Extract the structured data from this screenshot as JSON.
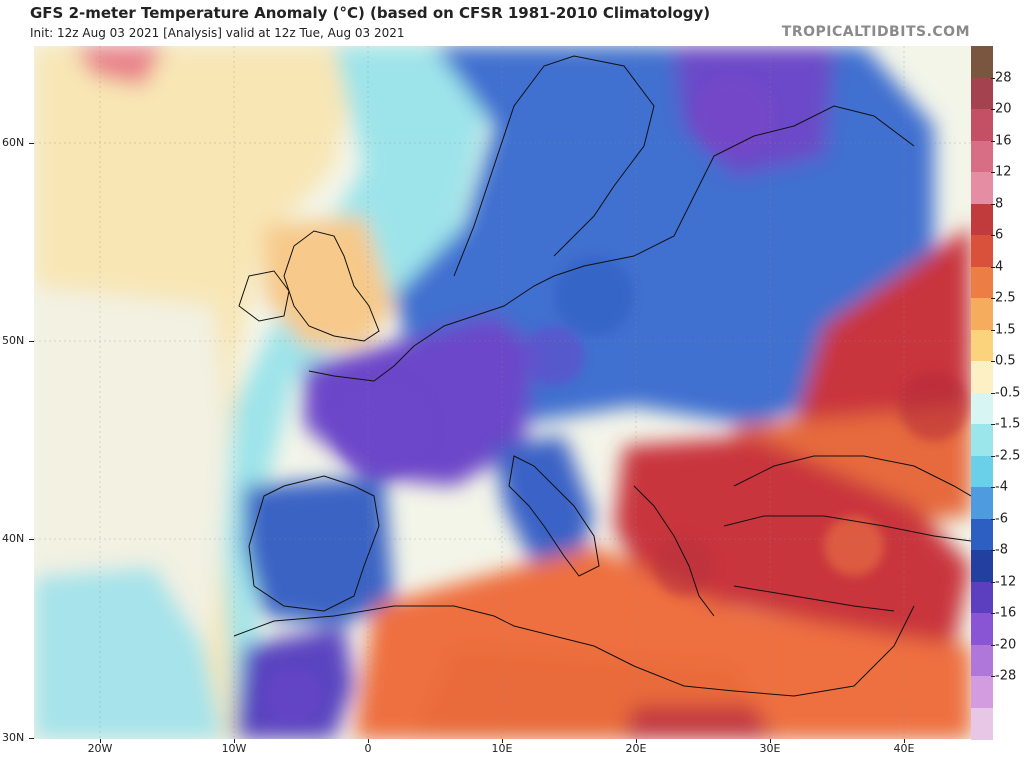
{
  "header": {
    "title": "GFS 2-meter Temperature Anomaly (°C) (based on CFSR 1981-2010 Climatology)",
    "subtitle": "Init: 12z Aug 03 2021   [Analysis]   valid at 12z Tue, Aug 03 2021",
    "brand": "TROPICALTIDBITS.COM"
  },
  "axes": {
    "lat_labels": [
      "60N",
      "50N",
      "40N",
      "30N"
    ],
    "lon_labels": [
      "20W",
      "10W",
      "0",
      "10E",
      "20E",
      "30E",
      "40E"
    ]
  },
  "colorbar": {
    "labels": [
      "28",
      "20",
      "16",
      "12",
      "8",
      "6",
      "4",
      "2.5",
      "1.5",
      "0.5",
      "-0.5",
      "-1.5",
      "-2.5",
      "-4",
      "-6",
      "-8",
      "-12",
      "-16",
      "-20",
      "-28"
    ],
    "colors": [
      "#7a5640",
      "#a5424f",
      "#c45066",
      "#d76e85",
      "#e58ea3",
      "#c23b3c",
      "#d9513a",
      "#ec7e45",
      "#f5ac5c",
      "#fbd37d",
      "#fdf0c4",
      "#d7f5f3",
      "#9ae6ea",
      "#6ad0ea",
      "#4e9be0",
      "#2d5fc2",
      "#233f9f",
      "#5b3fbf",
      "#8a55d4",
      "#b077db",
      "#d49ce0",
      "#e7c6e6"
    ]
  },
  "map": {
    "description_colors": {
      "ocean_neutral": "#eef3e4",
      "atlantic_light": "#f9e3b0",
      "cold_blue": "#3e66cc",
      "very_cold": "#6a43c9",
      "warm_orange": "#ec6a3e",
      "hot_red": "#c9343d"
    }
  }
}
